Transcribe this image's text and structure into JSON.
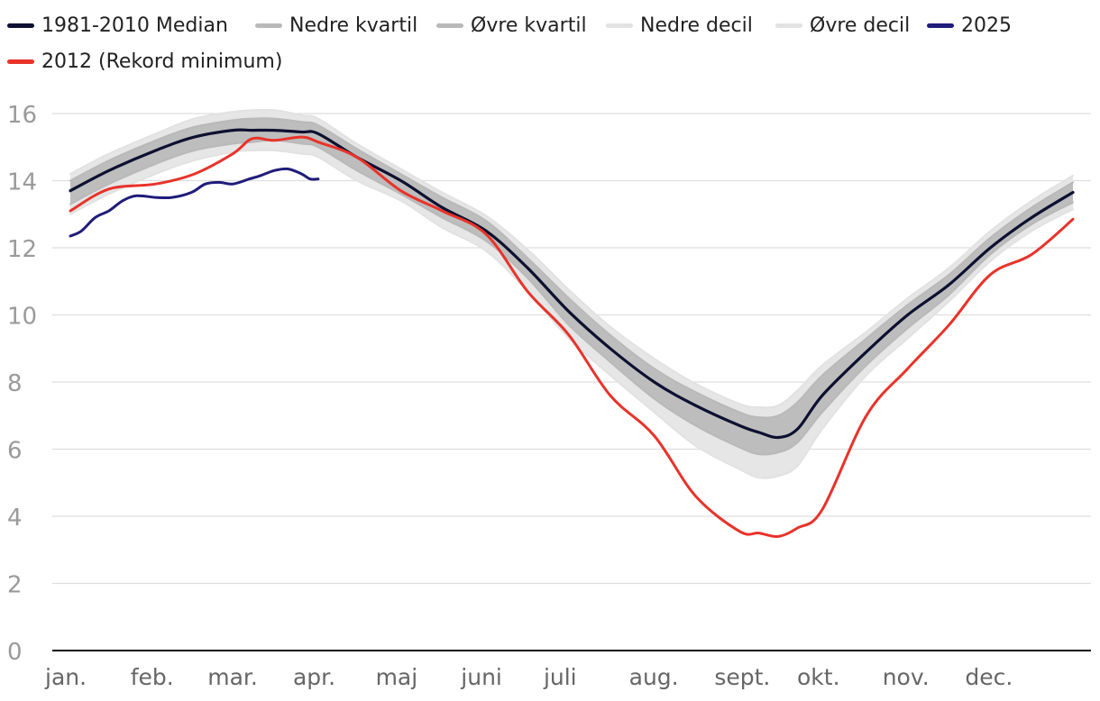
{
  "legend": [
    {
      "key": "median",
      "label": "1981-2010 Median",
      "color": "#0d1030"
    },
    {
      "key": "lower_quartile",
      "label": "Nedre kvartil",
      "color": "#b9b9b9"
    },
    {
      "key": "upper_quartile",
      "label": "Øvre kvartil",
      "color": "#b9b9b9"
    },
    {
      "key": "lower_decile",
      "label": "Nedre decil",
      "color": "#e2e2e2"
    },
    {
      "key": "upper_decile",
      "label": "Øvre decil",
      "color": "#e2e2e2"
    },
    {
      "key": "y2025",
      "label": "2025",
      "color": "#1f1c7a"
    },
    {
      "key": "y2012",
      "label": "2012 (Rekord minimum)",
      "color": "#e8332a"
    }
  ],
  "chart_data": {
    "type": "line",
    "title": "",
    "xlabel": "",
    "ylabel": "",
    "ylim": [
      0,
      16
    ],
    "yticks": [
      0,
      2,
      4,
      6,
      8,
      10,
      12,
      14,
      16
    ],
    "xlim": [
      1,
      365
    ],
    "month_ticks": [
      {
        "day": 1,
        "label": "jan."
      },
      {
        "day": 32,
        "label": "feb."
      },
      {
        "day": 60,
        "label": "mar."
      },
      {
        "day": 91,
        "label": "apr."
      },
      {
        "day": 121,
        "label": "maj"
      },
      {
        "day": 152,
        "label": "juni"
      },
      {
        "day": 182,
        "label": "juli"
      },
      {
        "day": 213,
        "label": "aug."
      },
      {
        "day": 244,
        "label": "sept."
      },
      {
        "day": 274,
        "label": "okt."
      },
      {
        "day": 305,
        "label": "nov."
      },
      {
        "day": 335,
        "label": "dec."
      }
    ],
    "x": [
      1,
      15,
      32,
      46,
      60,
      67,
      75,
      85,
      91,
      105,
      121,
      136,
      152,
      167,
      182,
      197,
      213,
      228,
      244,
      251,
      258,
      265,
      274,
      290,
      305,
      320,
      335,
      350,
      365
    ],
    "series": [
      {
        "name": "1981-2010 Median",
        "key": "median",
        "color": "#0d1030",
        "width": 3.2,
        "values": [
          13.7,
          14.3,
          14.9,
          15.3,
          15.5,
          15.5,
          15.5,
          15.45,
          15.4,
          14.7,
          14.0,
          13.2,
          12.5,
          11.4,
          10.1,
          9.0,
          8.0,
          7.3,
          6.7,
          6.5,
          6.35,
          6.6,
          7.6,
          8.9,
          10.0,
          10.9,
          12.0,
          12.9,
          13.65
        ]
      },
      {
        "name": "Nedre kvartil",
        "key": "lower_quartile",
        "color": "#b9b9b9",
        "width": 2,
        "values": [
          13.3,
          13.9,
          14.5,
          14.9,
          15.1,
          15.15,
          15.2,
          15.1,
          15.0,
          14.3,
          13.6,
          12.9,
          12.2,
          11.1,
          9.7,
          8.6,
          7.5,
          6.7,
          6.05,
          5.85,
          5.9,
          6.2,
          7.1,
          8.5,
          9.6,
          10.6,
          11.8,
          12.7,
          13.35
        ]
      },
      {
        "name": "Øvre kvartil",
        "key": "upper_quartile",
        "color": "#b9b9b9",
        "width": 2,
        "values": [
          14.0,
          14.6,
          15.2,
          15.6,
          15.8,
          15.85,
          15.85,
          15.75,
          15.65,
          14.95,
          14.2,
          13.5,
          12.8,
          11.7,
          10.5,
          9.4,
          8.4,
          7.7,
          7.1,
          6.95,
          7.0,
          7.4,
          8.2,
          9.3,
          10.3,
          11.2,
          12.3,
          13.2,
          13.95
        ]
      },
      {
        "name": "Nedre decil",
        "key": "lower_decile",
        "color": "#e2e2e2",
        "width": 2,
        "values": [
          13.0,
          13.6,
          14.2,
          14.6,
          14.85,
          14.9,
          14.9,
          14.8,
          14.7,
          14.0,
          13.4,
          12.6,
          11.9,
          10.7,
          9.3,
          8.2,
          7.1,
          6.1,
          5.4,
          5.15,
          5.2,
          5.5,
          6.6,
          8.2,
          9.3,
          10.4,
          11.6,
          12.5,
          13.15
        ]
      },
      {
        "name": "Øvre decil",
        "key": "upper_decile",
        "color": "#e2e2e2",
        "width": 2,
        "values": [
          14.2,
          14.8,
          15.4,
          15.85,
          16.05,
          16.1,
          16.1,
          15.95,
          15.85,
          15.1,
          14.35,
          13.65,
          12.95,
          11.95,
          10.75,
          9.65,
          8.7,
          7.95,
          7.35,
          7.25,
          7.3,
          7.75,
          8.5,
          9.5,
          10.5,
          11.4,
          12.5,
          13.4,
          14.15
        ]
      },
      {
        "name": "2012 (Rekord minimum)",
        "key": "y2012",
        "color": "#e8332a",
        "width": 3,
        "values": [
          13.1,
          13.75,
          13.9,
          14.2,
          14.8,
          15.25,
          15.2,
          15.3,
          15.15,
          14.7,
          13.7,
          13.1,
          12.4,
          10.7,
          9.4,
          7.6,
          6.4,
          4.6,
          3.55,
          3.5,
          3.4,
          3.65,
          4.2,
          7.0,
          8.4,
          9.7,
          11.2,
          11.8,
          12.85
        ]
      },
      {
        "name": "2025",
        "key": "y2025",
        "color": "#1f1c7a",
        "width": 3,
        "x": [
          1,
          5,
          10,
          15,
          20,
          25,
          32,
          38,
          45,
          50,
          55,
          60,
          66,
          70,
          75,
          80,
          85,
          88,
          91
        ],
        "values": [
          12.35,
          12.5,
          12.9,
          13.1,
          13.4,
          13.55,
          13.5,
          13.5,
          13.65,
          13.9,
          13.95,
          13.9,
          14.05,
          14.15,
          14.3,
          14.35,
          14.2,
          14.05,
          14.05
        ]
      }
    ]
  }
}
